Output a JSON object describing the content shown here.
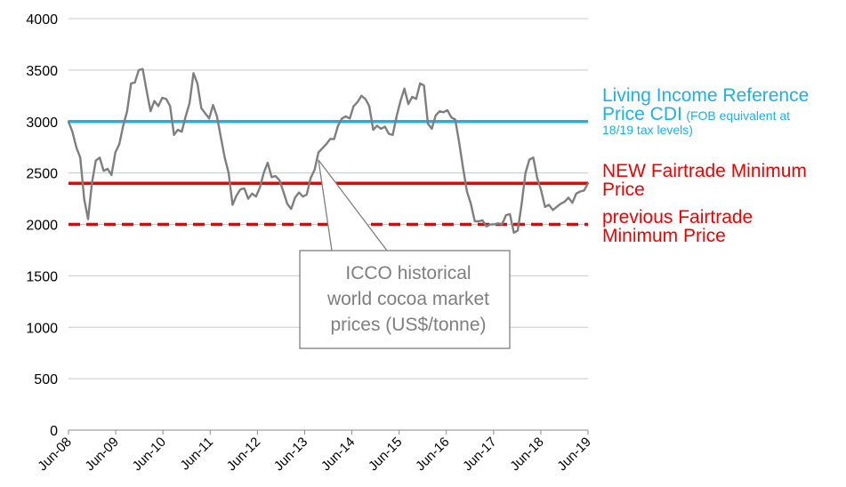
{
  "chart_data": {
    "type": "line",
    "x_tick_labels": [
      "Jun-08",
      "Jun-09",
      "Jun-10",
      "Jun-11",
      "Jun-12",
      "Jun-13",
      "Jun-14",
      "Jun-15",
      "Jun-16",
      "Jun-17",
      "Jun-18",
      "Jun-19"
    ],
    "y_tick_labels": [
      "0",
      "500",
      "1000",
      "1500",
      "2000",
      "2500",
      "3000",
      "3500",
      "4000"
    ],
    "ylim": [
      0,
      4000
    ],
    "xlim": [
      "Jun-08",
      "Jun-19"
    ],
    "grid": "horizontal",
    "series": [
      {
        "name": "ICCO historical world cocoa market prices (US$/tonne)",
        "color": "#7f7f7f",
        "style": "solid",
        "x_start": "Jun-08",
        "x_step": "1 month",
        "values": [
          3000,
          2900,
          2750,
          2650,
          2250,
          2050,
          2400,
          2620,
          2650,
          2520,
          2540,
          2480,
          2700,
          2780,
          2960,
          3100,
          3370,
          3380,
          3500,
          3510,
          3300,
          3100,
          3200,
          3150,
          3230,
          3220,
          3150,
          2870,
          2920,
          2900,
          3050,
          3180,
          3470,
          3370,
          3130,
          3080,
          3030,
          3160,
          3050,
          2850,
          2650,
          2500,
          2190,
          2280,
          2340,
          2350,
          2250,
          2300,
          2270,
          2360,
          2500,
          2600,
          2460,
          2470,
          2430,
          2320,
          2200,
          2150,
          2260,
          2310,
          2270,
          2290,
          2450,
          2530,
          2700,
          2740,
          2780,
          2830,
          2830,
          2960,
          3030,
          3050,
          3030,
          3150,
          3190,
          3250,
          3220,
          3150,
          2920,
          2960,
          2930,
          2950,
          2880,
          2870,
          3050,
          3200,
          3320,
          3170,
          3240,
          3220,
          3370,
          3350,
          2980,
          2930,
          3060,
          3100,
          3090,
          3110,
          3040,
          3020,
          2800,
          2550,
          2320,
          2200,
          2030,
          2030,
          2040,
          1980,
          2000,
          2000,
          2010,
          2000,
          2090,
          2100,
          1920,
          1940,
          2200,
          2500,
          2630,
          2650,
          2450,
          2330,
          2170,
          2190,
          2140,
          2170,
          2200,
          2220,
          2260,
          2210,
          2300,
          2320,
          2330,
          2400
        ]
      },
      {
        "name": "Living Income Reference Price CDI (FOB equivalent at 18/19 tax levels)",
        "color": "#1ab2e8",
        "style": "solid",
        "values": [
          3000
        ]
      },
      {
        "name": "NEW Fairtrade Minimum Price",
        "color": "#f20000",
        "style": "solid",
        "values": [
          2400
        ]
      },
      {
        "name": "previous Fairtrade Minimum Price",
        "color": "#f20000",
        "style": "dashed",
        "values": [
          2000
        ]
      }
    ]
  },
  "labels": {
    "living_line1": "Living Income Reference",
    "living_line2_main": "Price CDI",
    "living_line2_small": "(FOB equivalent  at",
    "living_line3_small": "18/19 tax levels)",
    "new_line1": "NEW Fairtrade Minimum",
    "new_line2": "Price",
    "prev_line1": "previous Fairtrade",
    "prev_line2": "Minimum Price"
  },
  "callout": {
    "line1": "ICCO historical",
    "line2": "world cocoa market",
    "line3": "prices (US$/tonne)"
  }
}
